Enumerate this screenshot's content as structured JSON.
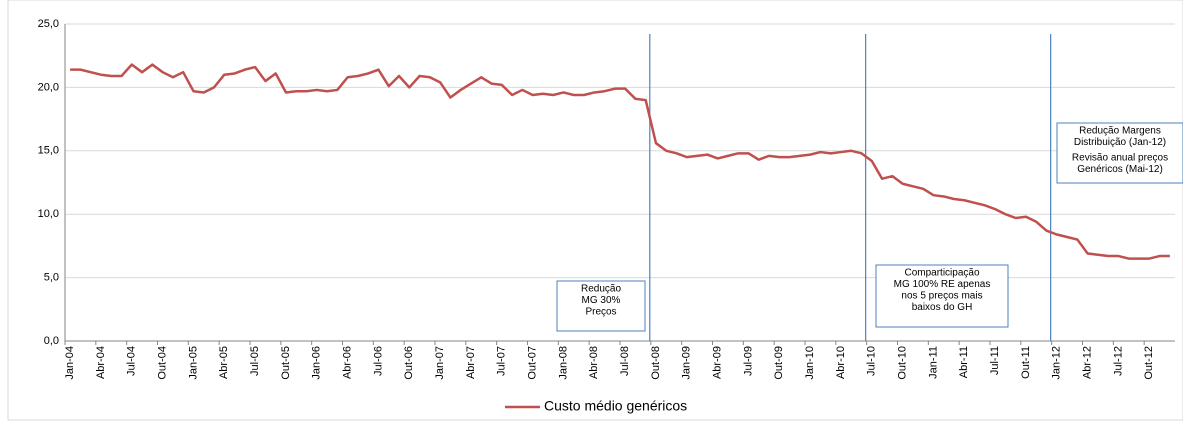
{
  "chart_data": {
    "type": "line",
    "categories": [
      "Jan-04",
      null,
      null,
      "Abr-04",
      null,
      null,
      "Jul-04",
      null,
      null,
      "Out-04",
      null,
      null,
      "Jan-05",
      null,
      null,
      "Abr-05",
      null,
      null,
      "Jul-05",
      null,
      null,
      "Out-05",
      null,
      null,
      "Jan-06",
      null,
      null,
      "Abr-06",
      null,
      null,
      "Jul-06",
      null,
      null,
      "Out-06",
      null,
      null,
      "Jan-07",
      null,
      null,
      "Abr-07",
      null,
      null,
      "Jul-07",
      null,
      null,
      "Out-07",
      null,
      null,
      "Jan-08",
      null,
      null,
      "Abr-08",
      null,
      null,
      "Jul-08",
      null,
      null,
      "Out-08",
      null,
      null,
      "Jan-09",
      null,
      null,
      "Abr-09",
      null,
      null,
      "Jul-09",
      null,
      null,
      "Out-09",
      null,
      null,
      "Jan-10",
      null,
      null,
      "Abr-10",
      null,
      null,
      "Jul-10",
      null,
      null,
      "Out-10",
      null,
      null,
      "Jan-11",
      null,
      null,
      "Abr-11",
      null,
      null,
      "Jul-11",
      null,
      null,
      "Out-11",
      null,
      null,
      "Jan-12",
      null,
      null,
      "Abr-12",
      null,
      null,
      "Jul-12",
      null,
      null,
      "Out-12",
      null,
      null
    ],
    "series": [
      {
        "name": "Custo médio genéricos",
        "color": "#c0504d",
        "values": [
          21.4,
          21.4,
          21.2,
          21.0,
          20.9,
          20.9,
          21.8,
          21.2,
          21.8,
          21.2,
          20.8,
          21.2,
          19.7,
          19.6,
          20.0,
          21.0,
          21.1,
          21.4,
          21.6,
          20.5,
          21.1,
          19.6,
          19.7,
          19.7,
          19.8,
          19.7,
          19.8,
          20.8,
          20.9,
          21.1,
          21.4,
          20.1,
          20.9,
          20.0,
          20.9,
          20.8,
          20.4,
          19.2,
          19.8,
          20.3,
          20.8,
          20.3,
          20.2,
          19.4,
          19.8,
          19.4,
          19.5,
          19.4,
          19.6,
          19.4,
          19.4,
          19.6,
          19.7,
          19.9,
          19.9,
          19.1,
          19.0,
          15.6,
          15.0,
          14.8,
          14.5,
          14.6,
          14.7,
          14.4,
          14.6,
          14.8,
          14.8,
          14.3,
          14.6,
          14.5,
          14.5,
          14.6,
          14.7,
          14.9,
          14.8,
          14.9,
          15.0,
          14.8,
          14.2,
          12.8,
          13.0,
          12.4,
          12.2,
          12.0,
          11.5,
          11.4,
          11.2,
          11.1,
          10.9,
          10.7,
          10.4,
          10.0,
          9.7,
          9.8,
          9.4,
          8.7,
          8.4,
          8.2,
          8.0,
          6.9,
          6.8,
          6.7,
          6.7,
          6.5,
          6.5,
          6.5,
          6.7,
          6.7
        ]
      }
    ],
    "ylim": [
      0,
      25
    ],
    "yticks": [
      {
        "value": 0,
        "label": "0,0"
      },
      {
        "value": 5,
        "label": "5,0"
      },
      {
        "value": 10,
        "label": "10,0"
      },
      {
        "value": 15,
        "label": "15,0"
      },
      {
        "value": 20,
        "label": "20,0"
      },
      {
        "value": 25,
        "label": "25,0"
      }
    ],
    "grid": true,
    "legend": "bottom",
    "annotations": [
      {
        "lines": [
          "Redução",
          "MG 30%",
          "Preços"
        ]
      },
      {
        "lines": [
          "Comparticipação",
          "MG 100% RE apenas",
          "nos 5 preços mais",
          "baixos do GH"
        ]
      },
      {
        "lines": [
          "Redução Margens",
          "Distribuição (Jan-12)",
          "Revisão anual preços",
          "Genéricos (Mai-12)"
        ]
      }
    ]
  }
}
